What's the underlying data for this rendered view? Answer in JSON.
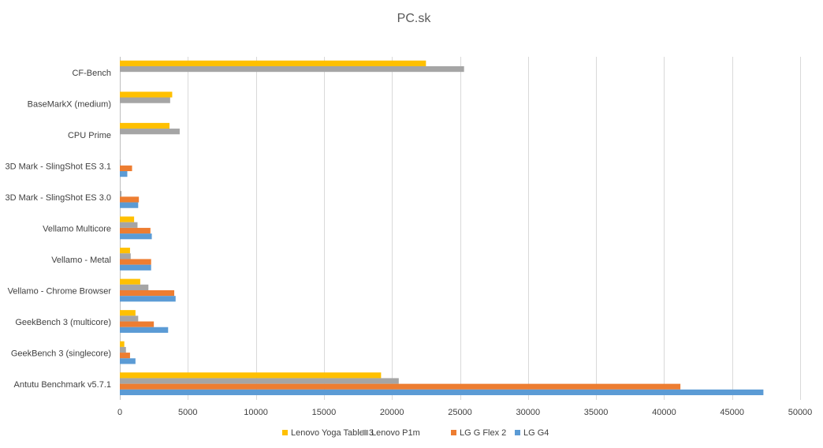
{
  "chart_data": {
    "type": "bar",
    "orientation": "horizontal",
    "title": "PC.sk",
    "xlabel": "",
    "ylabel": "",
    "xlim": [
      0,
      50000
    ],
    "x_ticks": [
      0,
      5000,
      10000,
      15000,
      20000,
      25000,
      30000,
      35000,
      40000,
      45000,
      50000
    ],
    "grid": true,
    "legend_position": "bottom",
    "categories": [
      "Antutu Benchmark v5.7.1",
      "GeekBench 3 (singlecore)",
      "GeekBench 3 (multicore)",
      "Vellamo - Chrome Browser",
      "Vellamo - Metal",
      "Vellamo Multicore",
      "3D Mark - SlingShot ES 3.0",
      "3D Mark - SlingShot ES 3.1",
      "CPU Prime",
      "BaseMarkX (medium)",
      "CF-Bench"
    ],
    "series": [
      {
        "name": "Lenovo Yoga Tablet 3",
        "color": "#FFC000",
        "values": [
          19200,
          330,
          1150,
          1500,
          750,
          1050,
          0,
          0,
          3650,
          3850,
          22500
        ]
      },
      {
        "name": "Lenovo P1m",
        "color": "#A5A5A5",
        "values": [
          20500,
          450,
          1350,
          2100,
          800,
          1300,
          120,
          60,
          4400,
          3700,
          25300
        ]
      },
      {
        "name": "LG G Flex 2",
        "color": "#ED7D31",
        "values": [
          41200,
          750,
          2500,
          4000,
          2300,
          2250,
          1400,
          900,
          0,
          0,
          0
        ]
      },
      {
        "name": "LG G4",
        "color": "#5B9BD5",
        "values": [
          47300,
          1150,
          3550,
          4100,
          2300,
          2350,
          1350,
          550,
          0,
          0,
          0
        ]
      }
    ]
  }
}
